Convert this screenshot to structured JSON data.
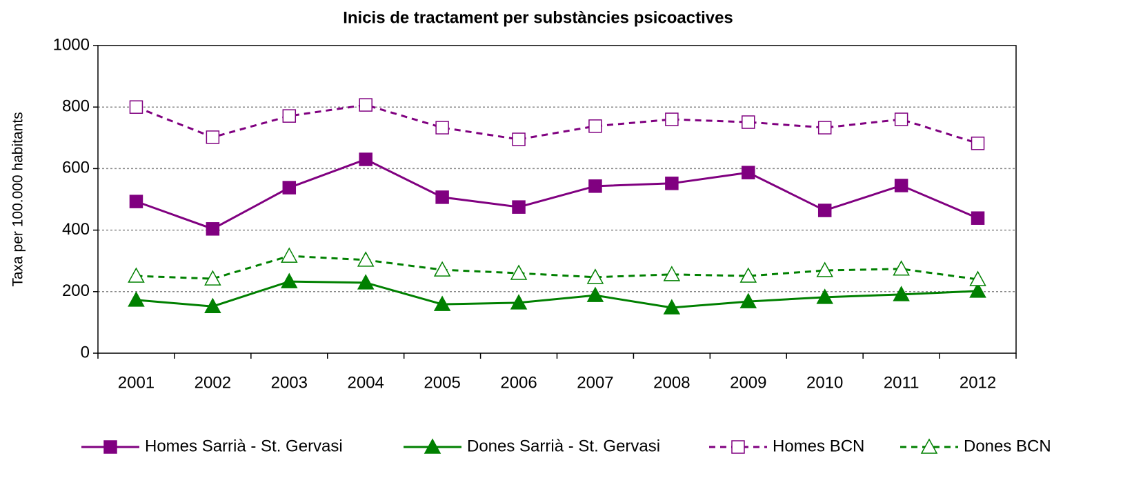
{
  "chart_data": {
    "type": "line",
    "title": "Inicis de tractament per substàncies psicoactives",
    "y_label": "Taxa per 100.000 habitants",
    "categories": [
      "2001",
      "2002",
      "2003",
      "2004",
      "2005",
      "2006",
      "2007",
      "2008",
      "2009",
      "2010",
      "2011",
      "2012"
    ],
    "series": [
      {
        "name": "Homes Sarrià - St. Gervasi",
        "color": "#800080",
        "marker": "square",
        "filled": true,
        "dashed": false,
        "values": [
          493,
          404,
          538,
          630,
          507,
          475,
          543,
          552,
          587,
          464,
          545,
          439
        ]
      },
      {
        "name": "Dones Sarrià - St. Gervasi",
        "color": "#008000",
        "marker": "triangle",
        "filled": true,
        "dashed": false,
        "values": [
          173,
          152,
          233,
          229,
          159,
          164,
          188,
          148,
          168,
          182,
          191,
          202
        ]
      },
      {
        "name": "Homes BCN",
        "color": "#800080",
        "marker": "square",
        "filled": false,
        "dashed": true,
        "values": [
          800,
          702,
          771,
          807,
          733,
          695,
          738,
          760,
          751,
          733,
          760,
          682
        ]
      },
      {
        "name": "Dones BCN",
        "color": "#008000",
        "marker": "triangle",
        "filled": false,
        "dashed": true,
        "values": [
          251,
          242,
          316,
          303,
          271,
          260,
          247,
          256,
          251,
          269,
          274,
          240
        ]
      }
    ],
    "ylim": [
      0,
      1000
    ],
    "yticks": [
      0,
      200,
      400,
      600,
      800,
      1000
    ],
    "grid": true,
    "legend": "bottom"
  }
}
